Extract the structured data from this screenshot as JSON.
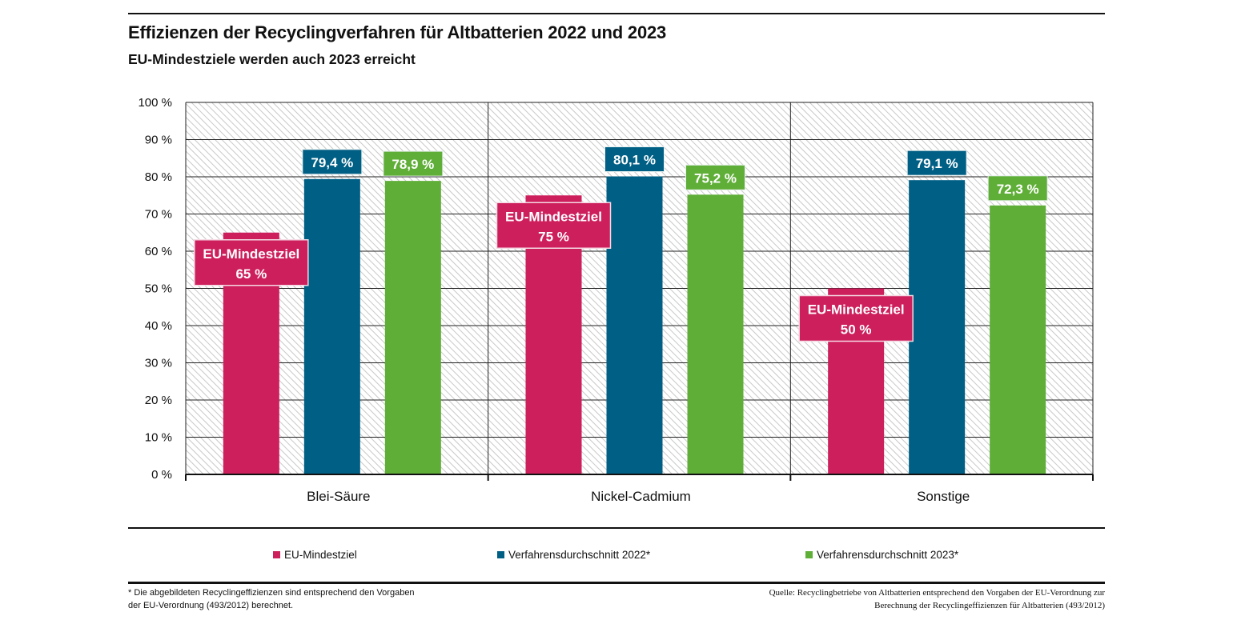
{
  "header": {
    "title": "Effizienzen der Recyclingverfahren für Altbatterien 2022 und 2023",
    "subtitle": "EU-Mindestziele werden auch 2023 erreicht"
  },
  "colors": {
    "eu_target": "#cd1f5c",
    "avg_2022": "#005f85",
    "avg_2023": "#5fae37",
    "grid": "#222222",
    "hatch": "#c8c8c8"
  },
  "chart_data": {
    "type": "bar",
    "title": "Effizienzen der Recyclingverfahren für Altbatterien 2022 und 2023",
    "subtitle": "EU-Mindestziele werden auch 2023 erreicht",
    "xlabel": "",
    "ylabel": "",
    "ylim": [
      0,
      100
    ],
    "yticks": [
      0,
      10,
      20,
      30,
      40,
      50,
      60,
      70,
      80,
      90,
      100
    ],
    "ytick_labels": [
      "0 %",
      "10 %",
      "20 %",
      "30 %",
      "40 %",
      "50 %",
      "60 %",
      "70 %",
      "80 %",
      "90 %",
      "100 %"
    ],
    "grid": true,
    "background": "hatched",
    "categories": [
      "Blei-Säure",
      "Nickel-Cadmium",
      "Sonstige"
    ],
    "series": [
      {
        "name": "EU-Mindestziel",
        "values": [
          65,
          75,
          50
        ],
        "labels": [
          "EU-Mindestziel\n65 %",
          "EU-Mindestziel\n75 %",
          "EU-Mindestziel\n50 %"
        ]
      },
      {
        "name": "Verfahrensdurchschnitt 2022*",
        "values": [
          79.4,
          80.1,
          79.1
        ],
        "labels": [
          "79,4 %",
          "80,1 %",
          "79,1 %"
        ]
      },
      {
        "name": "Verfahrensdurchschnitt 2023*",
        "values": [
          78.9,
          75.2,
          72.3
        ],
        "labels": [
          "78,9 %",
          "75,2 %",
          "72,3 %"
        ]
      }
    ],
    "legend_position": "bottom"
  },
  "legend": [
    {
      "label": "EU-Mindestziel"
    },
    {
      "label": "Verfahrensdurchschnitt 2022*"
    },
    {
      "label": "Verfahrensdurchschnitt 2023*"
    }
  ],
  "footnote": {
    "line1": "* Die abgebildeten Recyclingeffizienzen sind entsprechend den Vorgaben",
    "line2": "der EU-Verordnung (493/2012) berechnet."
  },
  "source": {
    "line1": "Quelle: Recyclingbetriebe von Altbatterien entsprechend den Vorgaben der EU-Verordnung zur",
    "line2": "Berechnung der Recyclingeffizienzen für Altbatterien (493/2012)"
  }
}
